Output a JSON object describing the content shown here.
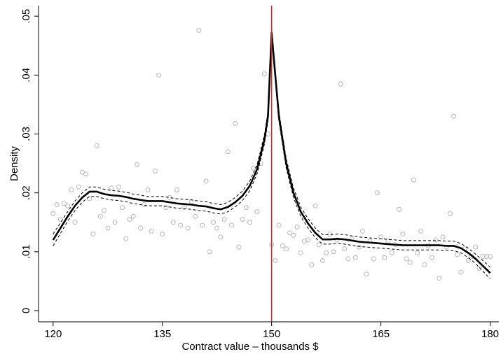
{
  "chart_data": {
    "type": "scatter",
    "xlabel": "Contract value – thousands $",
    "ylabel": "Density",
    "xlim": [
      118,
      181.2
    ],
    "ylim": [
      -0.0019,
      0.0518
    ],
    "xticks": [
      120,
      135,
      150,
      165,
      180
    ],
    "yticks": [
      0,
      {
        "value": 0.01,
        "label": ".01"
      },
      {
        "value": 0.02,
        "label": ".02"
      },
      {
        "value": 0.03,
        "label": ".03"
      },
      {
        "value": 0.04,
        "label": ".04"
      },
      {
        "value": 0.05,
        "label": ".05"
      }
    ],
    "xline": {
      "value": 150,
      "color": "#d62728"
    },
    "x": [
      120,
      121,
      122,
      123,
      124,
      125,
      126,
      127,
      128,
      129,
      130,
      131,
      132,
      133,
      134,
      135,
      136,
      137,
      138,
      139,
      140,
      141,
      142,
      143,
      144,
      145,
      146,
      147,
      148,
      149,
      149.5,
      150,
      150.5,
      151,
      152,
      153,
      154,
      155,
      156,
      157,
      158,
      159,
      160,
      161,
      162,
      163,
      164,
      165,
      166,
      167,
      168,
      169,
      170,
      171,
      172,
      173,
      174,
      175,
      176,
      177,
      178,
      179,
      180
    ],
    "series": [
      {
        "type": "scatter",
        "color": "#b8b8b8",
        "x": [
          120,
          120.5,
          121,
          121.5,
          122,
          122.5,
          123,
          123.5,
          124,
          124.5,
          125,
          125.5,
          126,
          126.5,
          127,
          127.5,
          128,
          128.5,
          129,
          129.5,
          130,
          130.5,
          131,
          131.5,
          132,
          132.5,
          133,
          133.5,
          134,
          134.5,
          135,
          135.5,
          136,
          136.5,
          137,
          137.5,
          138,
          138.5,
          139,
          139.5,
          140,
          140.5,
          141,
          141.5,
          142,
          142.5,
          143,
          143.5,
          144,
          144.5,
          145,
          145.5,
          146,
          146.5,
          147,
          147.5,
          148,
          148.5,
          149,
          149.5,
          150,
          150.5,
          151,
          151.5,
          152,
          152.5,
          153,
          153.5,
          154,
          154.5,
          155,
          155.5,
          156,
          156.5,
          157,
          157.5,
          158,
          158.5,
          159,
          159.5,
          160,
          160.5,
          161,
          161.5,
          162,
          162.5,
          163,
          163.5,
          164,
          164.5,
          165,
          165.5,
          166,
          166.5,
          167,
          167.5,
          168,
          168.5,
          169,
          169.5,
          170,
          170.5,
          171,
          171.5,
          172,
          172.5,
          173,
          173.5,
          174,
          174.5,
          175,
          175.5,
          176,
          176.5,
          177,
          177.5,
          178,
          178.5,
          179,
          179.5,
          180
        ],
        "values": [
          0.0165,
          0.018,
          0.0155,
          0.0182,
          0.0178,
          0.0205,
          0.015,
          0.021,
          0.0235,
          0.0232,
          0.019,
          0.013,
          0.028,
          0.016,
          0.017,
          0.014,
          0.0208,
          0.015,
          0.021,
          0.0175,
          0.0122,
          0.0155,
          0.016,
          0.0248,
          0.014,
          0.018,
          0.0205,
          0.0135,
          0.0237,
          0.04,
          0.013,
          0.0175,
          0.0192,
          0.015,
          0.0205,
          0.0145,
          0.0175,
          0.014,
          0.0185,
          0.016,
          0.0476,
          0.0145,
          0.022,
          0.01,
          0.015,
          0.014,
          0.0125,
          0.0155,
          0.027,
          0.0145,
          0.0318,
          0.0108,
          0.0155,
          0.0175,
          0.015,
          0.0242,
          0.0168,
          0.025,
          0.0402,
          0.03,
          0.0112,
          0.0085,
          0.0145,
          0.011,
          0.0105,
          0.0132,
          0.0128,
          0.0142,
          0.0098,
          0.0118,
          0.012,
          0.0078,
          0.0178,
          0.0112,
          0.0085,
          0.0098,
          0.013,
          0.01,
          0.012,
          0.0385,
          0.0105,
          0.0088,
          0.0122,
          0.009,
          0.0108,
          0.0135,
          0.0062,
          0.0118,
          0.0088,
          0.02,
          0.0125,
          0.009,
          0.0118,
          0.0098,
          0.0112,
          0.0172,
          0.013,
          0.0088,
          0.0082,
          0.0222,
          0.0098,
          0.0135,
          0.0078,
          0.011,
          0.009,
          0.012,
          0.0055,
          0.0125,
          0.0108,
          0.0165,
          0.033,
          0.0095,
          0.0065,
          0.0105,
          0.0085,
          0.0092,
          0.0108,
          0.0072,
          0.0092,
          0.0092,
          0.0092
        ]
      },
      {
        "type": "line",
        "style": "dashed",
        "color": "#000000",
        "values": [
          0.013,
          0.0149,
          0.0168,
          0.0186,
          0.02,
          0.021,
          0.021,
          0.0206,
          0.0204,
          0.0203,
          0.0201,
          0.0198,
          0.0196,
          0.0194,
          0.0194,
          0.0194,
          0.0192,
          0.019,
          0.0189,
          0.0188,
          0.0186,
          0.0185,
          0.0182,
          0.018,
          0.0184,
          0.0192,
          0.0203,
          0.022,
          0.0248,
          0.0298,
          0.0338,
          0.048,
          0.0408,
          0.0338,
          0.0258,
          0.0208,
          0.0176,
          0.0156,
          0.014,
          0.0129,
          0.0129,
          0.013,
          0.0129,
          0.0127,
          0.0125,
          0.0124,
          0.0123,
          0.0122,
          0.0121,
          0.012,
          0.0119,
          0.0119,
          0.0119,
          0.0119,
          0.0119,
          0.0119,
          0.0118,
          0.0118,
          0.0114,
          0.0106,
          0.0096,
          0.0085,
          0.0074
        ]
      },
      {
        "type": "line",
        "style": "dashed",
        "color": "#000000",
        "values": [
          0.011,
          0.0131,
          0.0152,
          0.017,
          0.0184,
          0.0194,
          0.0194,
          0.019,
          0.0188,
          0.0187,
          0.0185,
          0.0182,
          0.018,
          0.0178,
          0.0178,
          0.0178,
          0.0176,
          0.0174,
          0.0173,
          0.0172,
          0.017,
          0.0169,
          0.0166,
          0.0164,
          0.0168,
          0.0176,
          0.0187,
          0.0204,
          0.0232,
          0.0282,
          0.0322,
          0.0464,
          0.0392,
          0.0322,
          0.0242,
          0.0192,
          0.016,
          0.014,
          0.0124,
          0.0113,
          0.0113,
          0.0114,
          0.0113,
          0.0111,
          0.0109,
          0.0108,
          0.0107,
          0.0106,
          0.0105,
          0.0104,
          0.0103,
          0.0103,
          0.0103,
          0.0103,
          0.0103,
          0.0103,
          0.0102,
          0.0102,
          0.0098,
          0.009,
          0.008,
          0.0067,
          0.0054
        ]
      },
      {
        "type": "line",
        "style": "solid",
        "color": "#000000",
        "values": [
          0.012,
          0.014,
          0.016,
          0.0178,
          0.0192,
          0.0202,
          0.0202,
          0.0198,
          0.0196,
          0.0195,
          0.0193,
          0.019,
          0.0188,
          0.0186,
          0.0186,
          0.0186,
          0.0184,
          0.0182,
          0.0181,
          0.018,
          0.0178,
          0.0177,
          0.0174,
          0.0172,
          0.0176,
          0.0184,
          0.0195,
          0.0212,
          0.024,
          0.029,
          0.033,
          0.0472,
          0.04,
          0.033,
          0.025,
          0.02,
          0.0168,
          0.0148,
          0.0132,
          0.0121,
          0.0121,
          0.0122,
          0.0121,
          0.0119,
          0.0117,
          0.0116,
          0.0115,
          0.0114,
          0.0113,
          0.0112,
          0.0111,
          0.0111,
          0.0111,
          0.0111,
          0.0111,
          0.0111,
          0.011,
          0.011,
          0.0106,
          0.0098,
          0.0088,
          0.0076,
          0.0064
        ]
      }
    ]
  }
}
